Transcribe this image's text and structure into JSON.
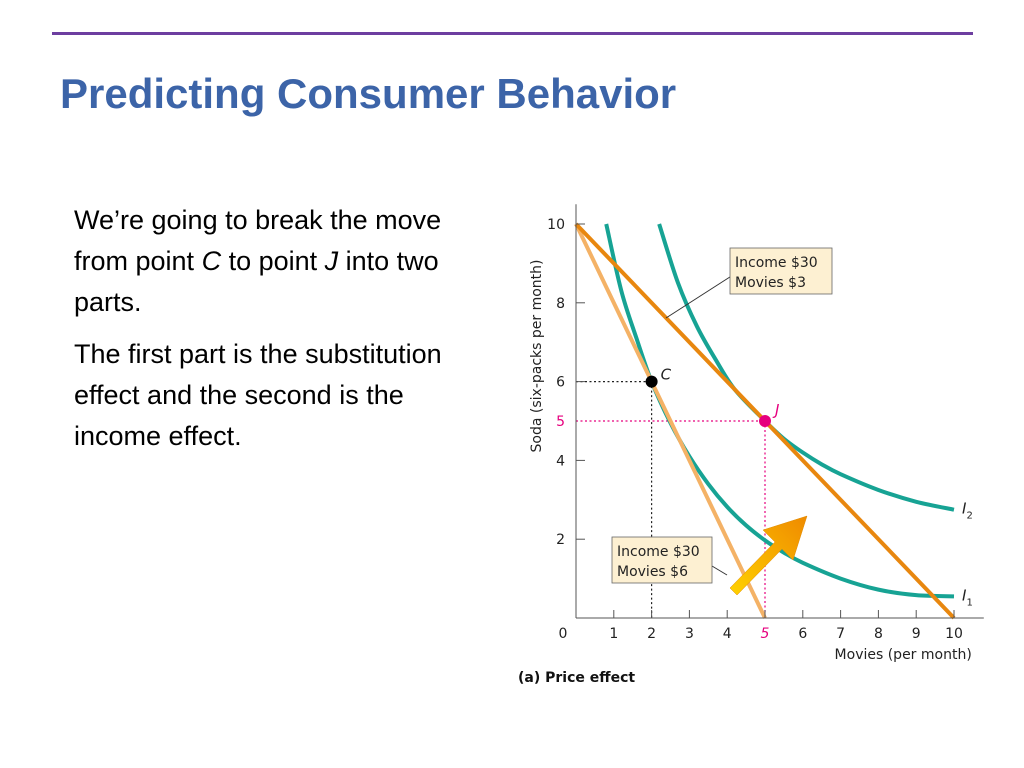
{
  "slide": {
    "title": "Predicting Consumer Behavior",
    "paragraph1": {
      "before_c": "We’re going to break the move from point ",
      "point_c": "C",
      "between": " to point ",
      "point_j": "J",
      "after_j": " into two parts."
    },
    "paragraph2": "The first part is the substitution effect and the second is the income effect."
  },
  "colors": {
    "title": "#3c64a8",
    "rule": "#6d3ea0",
    "indifference_curve": "#17a394",
    "budget_line_new": "#e8870f",
    "budget_line_old": "#f4b266",
    "highlight": "#e6007e",
    "label_box_fill": "#fdf0d2",
    "arrow": "#f0a800"
  },
  "chart_data": {
    "type": "line",
    "caption": "(a) Price effect",
    "xlabel": "Movies (per month)",
    "ylabel": "Soda (six-packs per month)",
    "xlim": [
      0,
      11
    ],
    "ylim": [
      0,
      10.5
    ],
    "x_ticks": [
      "0",
      "1",
      "2",
      "3",
      "4",
      "5",
      "6",
      "7",
      "8",
      "9",
      "10"
    ],
    "x_tick_values": [
      0,
      1,
      2,
      3,
      4,
      5,
      6,
      7,
      8,
      9,
      10
    ],
    "x_highlight_tick": "5",
    "y_ticks": [
      "2",
      "4",
      "5",
      "6",
      "8",
      "10"
    ],
    "y_tick_values": [
      2,
      4,
      5,
      6,
      8,
      10
    ],
    "y_highlight_tick": "5",
    "grid": false,
    "budget_lines": [
      {
        "id": "new",
        "points": [
          [
            0,
            10
          ],
          [
            10,
            0
          ]
        ],
        "label": {
          "line1": "Income $30",
          "line2": "Movies $3"
        }
      },
      {
        "id": "old",
        "points": [
          [
            0,
            10
          ],
          [
            5,
            0
          ]
        ],
        "label": {
          "line1": "Income $30",
          "line2": "Movies $6"
        }
      }
    ],
    "indifference_curves": [
      {
        "name": "I",
        "subscript": "1",
        "points": [
          [
            0.8,
            10.0
          ],
          [
            1.2,
            8.3
          ],
          [
            1.6,
            7.1
          ],
          [
            2.0,
            6.0
          ],
          [
            2.5,
            4.95
          ],
          [
            3.0,
            4.1
          ],
          [
            3.5,
            3.4
          ],
          [
            4.0,
            2.82
          ],
          [
            4.5,
            2.35
          ],
          [
            5.0,
            1.97
          ],
          [
            5.5,
            1.66
          ],
          [
            6.0,
            1.4
          ],
          [
            7.0,
            1.0
          ],
          [
            8.0,
            0.72
          ],
          [
            9.0,
            0.58
          ],
          [
            10.0,
            0.55
          ]
        ]
      },
      {
        "name": "I",
        "subscript": "2",
        "points": [
          [
            2.2,
            10.0
          ],
          [
            2.7,
            8.5
          ],
          [
            3.2,
            7.4
          ],
          [
            3.7,
            6.55
          ],
          [
            4.2,
            5.8
          ],
          [
            5.0,
            5.0
          ],
          [
            5.5,
            4.55
          ],
          [
            6.0,
            4.2
          ],
          [
            6.5,
            3.9
          ],
          [
            7.0,
            3.65
          ],
          [
            8.0,
            3.25
          ],
          [
            9.0,
            2.95
          ],
          [
            10.0,
            2.75
          ]
        ]
      }
    ],
    "points": [
      {
        "name": "C",
        "x": 2,
        "y": 6
      },
      {
        "name": "J",
        "x": 5,
        "y": 5
      }
    ]
  }
}
